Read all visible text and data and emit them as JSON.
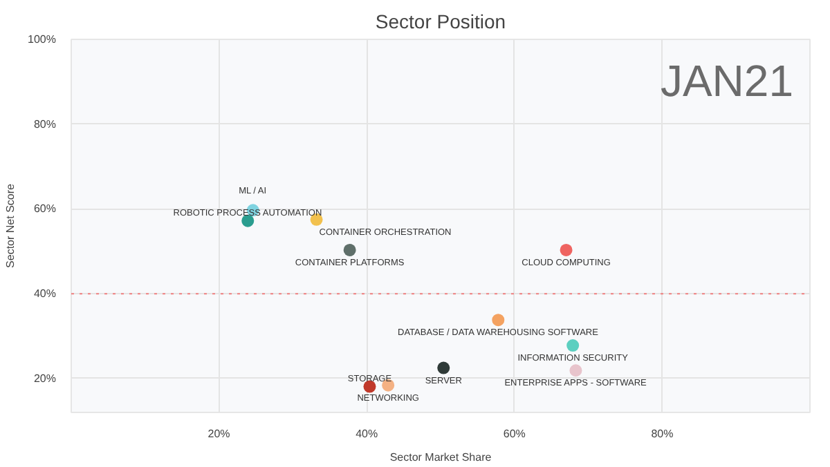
{
  "chart_data": {
    "type": "scatter",
    "title": "Sector Position",
    "xlabel": "Sector Market Share",
    "ylabel": "Sector Net Score",
    "xlim": [
      0,
      100
    ],
    "ylim": [
      12,
      100
    ],
    "xticks": [
      {
        "value": 20,
        "label": "20%"
      },
      {
        "value": 40,
        "label": "40%"
      },
      {
        "value": 60,
        "label": "60%"
      },
      {
        "value": 80,
        "label": "80%"
      }
    ],
    "yticks": [
      {
        "value": 20,
        "label": "20%"
      },
      {
        "value": 40,
        "label": "40%"
      },
      {
        "value": 60,
        "label": "60%"
      },
      {
        "value": 80,
        "label": "80%"
      },
      {
        "value": 100,
        "label": "100%"
      }
    ],
    "grid": true,
    "marker": "circle",
    "ref_lines": [
      {
        "axis": "y",
        "value": 40,
        "color": "#f08080",
        "line_style": "dotted"
      }
    ],
    "annotations": [
      "JAN21"
    ],
    "series": [
      {
        "name": "ML / AI",
        "color": "#7fd3e0",
        "x": [
          24.6
        ],
        "values": [
          59.7
        ]
      },
      {
        "name": "ROBOTIC PROCESS AUTOMATION",
        "color": "#2a9d8f",
        "x": [
          23.9
        ],
        "values": [
          57.2
        ]
      },
      {
        "name": "CONTAINER ORCHESTRATION",
        "color": "#f2c14e",
        "x": [
          33.2
        ],
        "values": [
          57.5
        ]
      },
      {
        "name": "CONTAINER PLATFORMS",
        "color": "#5f6f6a",
        "x": [
          37.7
        ],
        "values": [
          50.3
        ]
      },
      {
        "name": "CLOUD COMPUTING",
        "color": "#ef6461",
        "x": [
          67.0
        ],
        "values": [
          50.3
        ]
      },
      {
        "name": "DATABASE / DATA WAREHOUSING SOFTWARE",
        "color": "#f4a261",
        "x": [
          57.8
        ],
        "values": [
          33.8
        ]
      },
      {
        "name": "INFORMATION SECURITY",
        "color": "#5ccfc0",
        "x": [
          67.9
        ],
        "values": [
          27.8
        ]
      },
      {
        "name": "ENTERPRISE APPS - SOFTWARE",
        "color": "#e8c4cc",
        "x": [
          68.3
        ],
        "values": [
          21.9
        ]
      },
      {
        "name": "SERVER",
        "color": "#2f3a38",
        "x": [
          50.4
        ],
        "values": [
          22.5
        ]
      },
      {
        "name": "STORAGE",
        "color": "#c0392b",
        "x": [
          40.4
        ],
        "values": [
          18.1
        ]
      },
      {
        "name": "NETWORKING",
        "color": "#f4b183",
        "x": [
          42.9
        ],
        "values": [
          18.4
        ]
      }
    ]
  }
}
